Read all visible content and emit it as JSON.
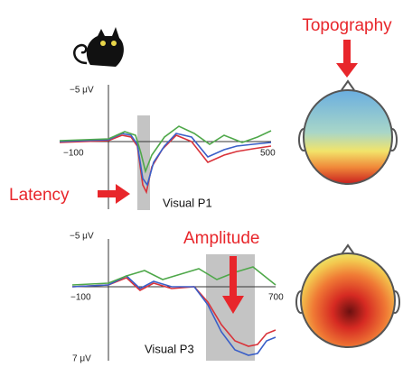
{
  "header": {
    "title": "Topography"
  },
  "panels": [
    {
      "y_top_label": "−5 μV",
      "x_left_label": "−100",
      "x_right_label": "500",
      "component": "Visual P1",
      "annotation": "Latency"
    },
    {
      "y_top_label": "−5 μV",
      "y_bottom_label": "7 μV",
      "x_left_label": "−100",
      "x_right_label": "700",
      "component": "Visual P3",
      "annotation": "Amplitude"
    }
  ]
}
